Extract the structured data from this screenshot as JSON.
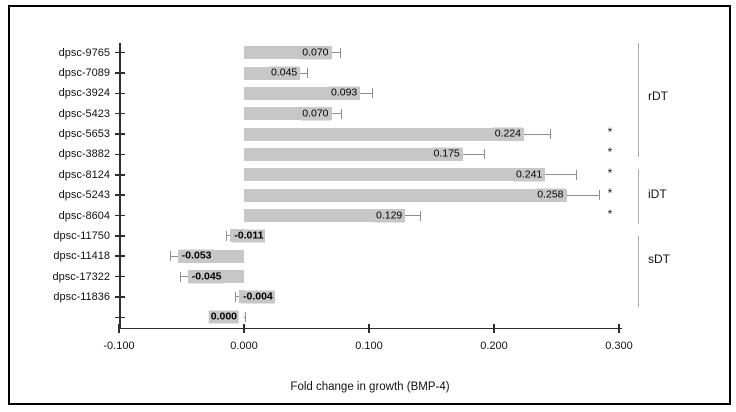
{
  "figure": {
    "background": "#ffffff",
    "border_color": "#000000"
  },
  "chart_data": {
    "type": "bar",
    "orientation": "horizontal",
    "xlabel": "Fold change in growth (BMP-4)",
    "xlim": [
      -0.1,
      0.3
    ],
    "x_tick_labels": [
      "-0.100",
      "0.000",
      "0.100",
      "0.200",
      "0.300"
    ],
    "x_tick_values": [
      -0.1,
      0.0,
      0.1,
      0.2,
      0.3
    ],
    "grid": false,
    "legend": false,
    "bar_color": "#c7c7c7",
    "error_color": "#8f8f8f",
    "axis_color": "#2e2e2e",
    "bracket_color": "#ababab",
    "significance_marker": "*",
    "categories": [
      "dpsc-9765",
      "dpsc-7089",
      "dpsc-3924",
      "dpsc-5423",
      "dpsc-5653",
      "dpsc-3882",
      "dpsc-8124",
      "dpsc-5243",
      "dpsc-8604",
      "dpsc-11750",
      "dpsc-11418",
      "dpsc-17322",
      "dpsc-11836",
      ""
    ],
    "values": [
      0.07,
      0.045,
      0.093,
      0.07,
      0.224,
      0.175,
      0.241,
      0.258,
      0.129,
      -0.011,
      -0.053,
      -0.045,
      -0.004,
      0.0
    ],
    "value_labels": [
      "0.070",
      "0.045",
      "0.093",
      "0.070",
      "0.224",
      "0.175",
      "0.241",
      "0.258",
      "0.129",
      "-0.011",
      "-0.053",
      "-0.045",
      "-0.004",
      "0.000"
    ],
    "errors": [
      0.007,
      0.006,
      0.01,
      0.008,
      0.021,
      0.017,
      0.025,
      0.026,
      0.012,
      0.003,
      0.006,
      0.006,
      0.003,
      0.001
    ],
    "significant": [
      false,
      false,
      false,
      false,
      true,
      true,
      true,
      true,
      true,
      false,
      false,
      false,
      false,
      false
    ],
    "bold_labels": [
      false,
      false,
      false,
      false,
      false,
      false,
      false,
      false,
      false,
      true,
      true,
      true,
      true,
      true
    ],
    "groups": [
      {
        "label": "rDT",
        "first_row": 0,
        "last_row": 5
      },
      {
        "label": "iDT",
        "first_row": 6,
        "last_row": 8
      },
      {
        "label": "sDT",
        "first_row": 9,
        "last_row": 12
      }
    ]
  }
}
